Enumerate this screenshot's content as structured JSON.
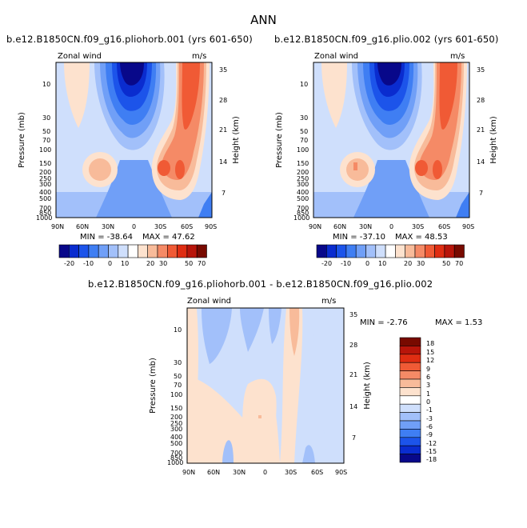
{
  "header": {
    "title": "ANN"
  },
  "chart_data": [
    {
      "type": "heatmap",
      "title": "b.e12.B1850CN.f09_g16.pliohorb.001 (yrs 601-650)",
      "left_label": "Zonal wind",
      "right_label": "m/s",
      "ylabel": "Pressure (mb)",
      "ylabel_right": "Height (km)",
      "x_ticks": [
        "90N",
        "60N",
        "30N",
        "0",
        "30S",
        "60S",
        "90S"
      ],
      "y_ticks": [
        "10",
        "30",
        "50",
        "70",
        "100",
        "150",
        "200",
        "250",
        "300",
        "400",
        "500",
        "700",
        "850",
        "1000"
      ],
      "y_ticks_right": [
        "35",
        "28",
        "21",
        "14",
        "7"
      ],
      "min_label": "MIN = -38.64",
      "max_label": "MAX = 47.62",
      "min": -38.64,
      "max": 47.62,
      "colorbar": {
        "labels": [
          "-20",
          "-10",
          "0",
          "10",
          "20",
          "30",
          "50",
          "70"
        ],
        "colors": [
          "#08088a",
          "#0a2ccf",
          "#1c54ea",
          "#3f7ef3",
          "#709ff7",
          "#a2c0fa",
          "#cfdffc",
          "#ffffff",
          "#fde2ce",
          "#f8bb9a",
          "#f58a66",
          "#f05a35",
          "#df2d12",
          "#b8150a",
          "#780a00"
        ]
      }
    },
    {
      "type": "heatmap",
      "title": "b.e12.B1850CN.f09_g16.plio.002 (yrs 601-650)",
      "left_label": "Zonal wind",
      "right_label": "m/s",
      "ylabel": "Pressure (mb)",
      "ylabel_right": "Height (km)",
      "x_ticks": [
        "90N",
        "60N",
        "30N",
        "0",
        "30S",
        "60S",
        "90S"
      ],
      "y_ticks": [
        "10",
        "30",
        "50",
        "70",
        "100",
        "150",
        "200",
        "250",
        "300",
        "400",
        "500",
        "700",
        "850",
        "1000"
      ],
      "y_ticks_right": [
        "35",
        "28",
        "21",
        "14",
        "7"
      ],
      "min_label": "MIN = -37.10",
      "max_label": "MAX = 48.53",
      "min": -37.1,
      "max": 48.53,
      "colorbar": {
        "labels": [
          "-20",
          "-10",
          "0",
          "10",
          "20",
          "30",
          "50",
          "70"
        ],
        "colors": [
          "#08088a",
          "#0a2ccf",
          "#1c54ea",
          "#3f7ef3",
          "#709ff7",
          "#a2c0fa",
          "#cfdffc",
          "#ffffff",
          "#fde2ce",
          "#f8bb9a",
          "#f58a66",
          "#f05a35",
          "#df2d12",
          "#b8150a",
          "#780a00"
        ]
      }
    },
    {
      "type": "heatmap",
      "title": "b.e12.B1850CN.f09_g16.pliohorb.001 - b.e12.B1850CN.f09_g16.plio.002",
      "left_label": "Zonal wind",
      "right_label": "m/s",
      "ylabel": "Pressure (mb)",
      "ylabel_right": "Height (km)",
      "x_ticks": [
        "90N",
        "60N",
        "30N",
        "0",
        "30S",
        "60S",
        "90S"
      ],
      "y_ticks": [
        "10",
        "30",
        "50",
        "70",
        "100",
        "150",
        "200",
        "250",
        "300",
        "400",
        "500",
        "700",
        "850",
        "1000"
      ],
      "y_ticks_right": [
        "35",
        "28",
        "21",
        "14",
        "7"
      ],
      "min_label": "MIN = -2.76",
      "max_label": "MAX = 1.53",
      "min": -2.76,
      "max": 1.53,
      "colorbar": {
        "labels": [
          "18",
          "15",
          "12",
          "9",
          "6",
          "3",
          "1",
          "0",
          "-1",
          "-3",
          "-6",
          "-9",
          "-12",
          "-15",
          "-18"
        ],
        "colors": [
          "#780a00",
          "#b8150a",
          "#df2d12",
          "#f05a35",
          "#f58a66",
          "#f8bb9a",
          "#fde2ce",
          "#ffffff",
          "#cfdffc",
          "#a2c0fa",
          "#709ff7",
          "#3f7ef3",
          "#1c54ea",
          "#0a2ccf",
          "#08088a"
        ]
      }
    }
  ]
}
